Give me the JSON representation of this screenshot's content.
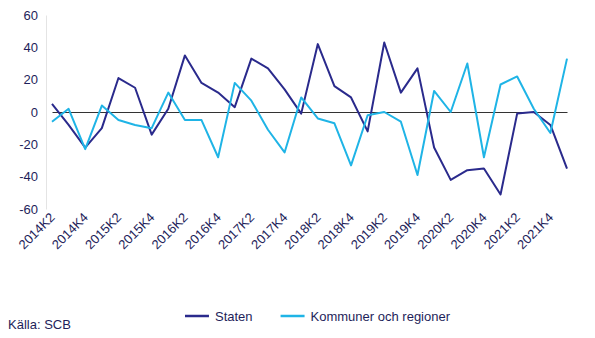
{
  "chart_data": {
    "type": "line",
    "categories": [
      "2014K2",
      null,
      "2014K4",
      null,
      "2015K2",
      null,
      "2015K4",
      null,
      "2016K2",
      null,
      "2016K4",
      null,
      "2017K2",
      null,
      "2017K4",
      null,
      "2018K2",
      null,
      "2018K4",
      null,
      "2019K2",
      null,
      "2019K4",
      null,
      "2020K2",
      null,
      "2020K4",
      null,
      "2021K2",
      null,
      "2021K4",
      null
    ],
    "series": [
      {
        "name": "Staten",
        "color": "#2a2a8c",
        "values": [
          5,
          -8,
          -22,
          -10,
          21,
          15,
          -14,
          2,
          35,
          18,
          12,
          3,
          33,
          27,
          14,
          -1,
          42,
          16,
          9,
          -12,
          43,
          12,
          27,
          -22,
          -42,
          -36,
          -35,
          -51,
          -1,
          0,
          -8,
          -35
        ]
      },
      {
        "name": "Kommuner och regioner",
        "color": "#1fb4e6",
        "values": [
          -6,
          2,
          -23,
          4,
          -5,
          -8,
          -10,
          12,
          -5,
          -5,
          -28,
          18,
          7,
          -11,
          -25,
          9,
          -4,
          -7,
          -33,
          -2,
          0,
          -6,
          -39,
          13,
          0,
          30,
          -28,
          17,
          22,
          2,
          -13,
          33
        ]
      }
    ],
    "ylim": [
      -60,
      60
    ],
    "yticks": [
      -60,
      -40,
      -20,
      0,
      20,
      40,
      60
    ],
    "grid": false,
    "legend": "bottom",
    "source": "Källa: SCB"
  }
}
